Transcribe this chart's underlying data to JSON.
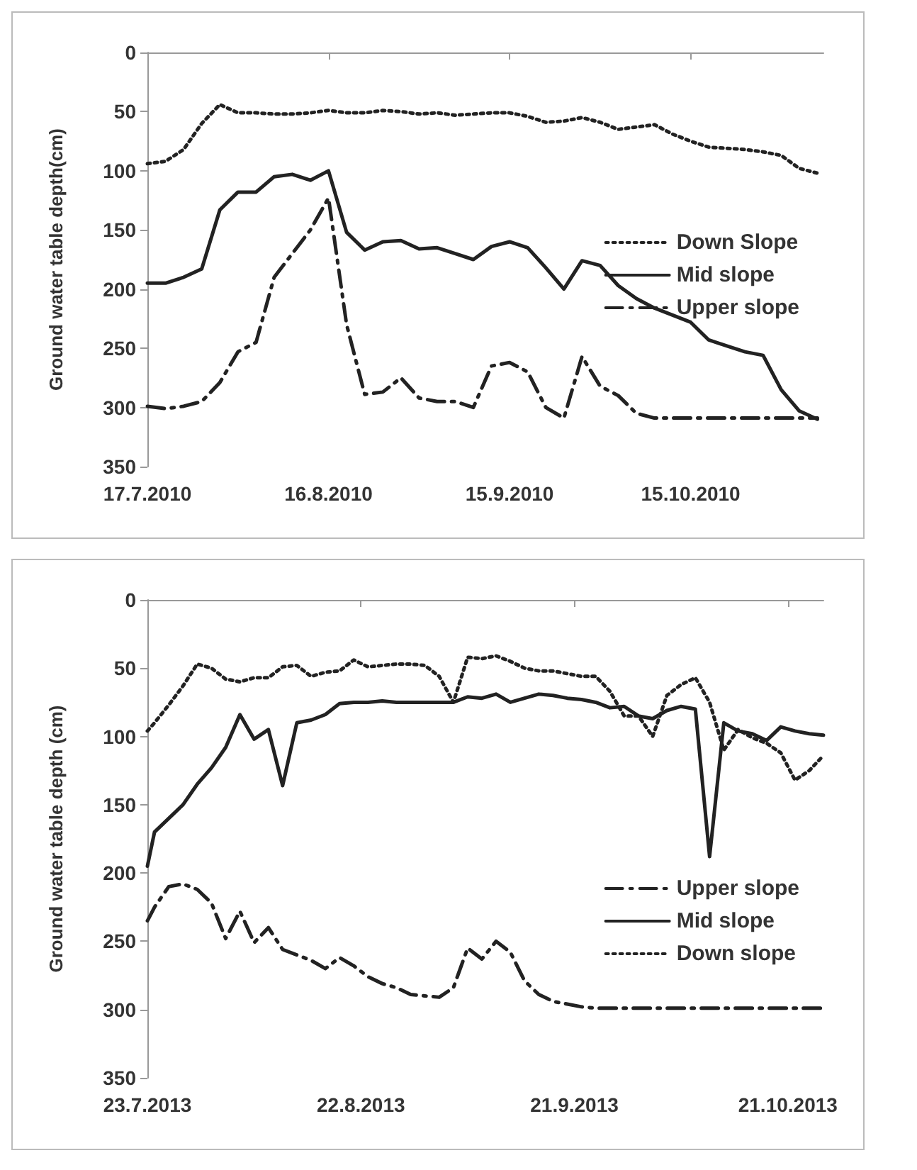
{
  "chart_data": [
    {
      "type": "line",
      "ylabel": "Ground water table depth(cm)",
      "x": [
        "2010-07-17",
        "2010-07-20",
        "2010-07-23",
        "2010-07-26",
        "2010-07-29",
        "2010-08-01",
        "2010-08-04",
        "2010-08-07",
        "2010-08-10",
        "2010-08-13",
        "2010-08-16",
        "2010-08-19",
        "2010-08-22",
        "2010-08-25",
        "2010-08-28",
        "2010-08-31",
        "2010-09-03",
        "2010-09-06",
        "2010-09-09",
        "2010-09-12",
        "2010-09-15",
        "2010-09-18",
        "2010-09-21",
        "2010-09-24",
        "2010-09-27",
        "2010-09-30",
        "2010-10-03",
        "2010-10-06",
        "2010-10-09",
        "2010-10-12",
        "2010-10-15",
        "2010-10-18",
        "2010-10-21",
        "2010-10-24",
        "2010-10-27",
        "2010-10-30",
        "2010-11-02",
        "2010-11-05"
      ],
      "series": [
        {
          "name": "Down Slope",
          "color": "#222222",
          "line_style": "dotted",
          "values": [
            94,
            92,
            82,
            60,
            44,
            51,
            51,
            52,
            52,
            51,
            49,
            51,
            51,
            49,
            50,
            52,
            51,
            53,
            52,
            51,
            51,
            54,
            59,
            58,
            55,
            59,
            65,
            63,
            61,
            69,
            75,
            80,
            81,
            82,
            84,
            87,
            98,
            102
          ]
        },
        {
          "name": "Mid slope",
          "color": "#222222",
          "line_style": "solid",
          "values": [
            195,
            195,
            190,
            183,
            133,
            118,
            118,
            105,
            103,
            108,
            100,
            152,
            167,
            160,
            159,
            166,
            165,
            170,
            175,
            164,
            160,
            165,
            182,
            200,
            176,
            180,
            197,
            208,
            216,
            222,
            228,
            243,
            248,
            253,
            256,
            285,
            303,
            310
          ]
        },
        {
          "name": "Upper slope",
          "color": "#222222",
          "line_style": "dashed",
          "values": [
            299,
            301,
            299,
            295,
            279,
            253,
            245,
            190,
            170,
            150,
            123,
            230,
            289,
            287,
            275,
            292,
            295,
            295,
            300,
            265,
            262,
            270,
            300,
            309,
            257,
            282,
            290,
            305,
            309,
            309,
            309,
            309,
            309,
            309,
            309,
            309,
            309,
            309
          ]
        }
      ],
      "xlim": [
        "2010-07-17",
        "2010-11-06"
      ],
      "xticks": [
        {
          "value": "2010-07-17",
          "label": "17.7.2010"
        },
        {
          "value": "2010-08-16",
          "label": "16.8.2010"
        },
        {
          "value": "2010-09-15",
          "label": "15.9.2010"
        },
        {
          "value": "2010-10-15",
          "label": "15.10.2010"
        }
      ],
      "ylim": [
        350,
        0
      ],
      "yticks": [
        0,
        50,
        100,
        150,
        200,
        250,
        300,
        350
      ],
      "grid": false,
      "legend": "right",
      "marker": "none"
    },
    {
      "type": "line",
      "ylabel": "Ground water table depth (cm)",
      "x": [
        "2013-07-23",
        "2013-07-24",
        "2013-07-26",
        "2013-07-28",
        "2013-07-30",
        "2013-08-01",
        "2013-08-03",
        "2013-08-05",
        "2013-08-07",
        "2013-08-09",
        "2013-08-11",
        "2013-08-13",
        "2013-08-15",
        "2013-08-17",
        "2013-08-19",
        "2013-08-21",
        "2013-08-23",
        "2013-08-25",
        "2013-08-27",
        "2013-08-29",
        "2013-08-31",
        "2013-09-02",
        "2013-09-04",
        "2013-09-06",
        "2013-09-08",
        "2013-09-10",
        "2013-09-12",
        "2013-09-14",
        "2013-09-16",
        "2013-09-18",
        "2013-09-20",
        "2013-09-22",
        "2013-09-24",
        "2013-09-26",
        "2013-09-28",
        "2013-09-30",
        "2013-10-02",
        "2013-10-04",
        "2013-10-06",
        "2013-10-08",
        "2013-10-10",
        "2013-10-12",
        "2013-10-14",
        "2013-10-16",
        "2013-10-18",
        "2013-10-20",
        "2013-10-22",
        "2013-10-24",
        "2013-10-26"
      ],
      "series": [
        {
          "name": "Upper slope",
          "color": "#222222",
          "line_style": "dashed",
          "values": [
            235,
            225,
            210,
            208,
            212,
            222,
            248,
            228,
            251,
            240,
            256,
            260,
            264,
            270,
            262,
            268,
            276,
            281,
            284,
            289,
            290,
            291,
            284,
            255,
            263,
            250,
            258,
            279,
            289,
            294,
            296,
            298,
            299,
            299,
            299,
            299,
            299,
            299,
            299,
            299,
            299,
            299,
            299,
            299,
            299,
            299,
            299,
            299,
            299
          ]
        },
        {
          "name": "Mid slope",
          "color": "#222222",
          "line_style": "solid",
          "values": [
            195,
            170,
            160,
            150,
            135,
            123,
            108,
            84,
            102,
            95,
            136,
            90,
            88,
            84,
            76,
            75,
            75,
            74,
            75,
            75,
            75,
            75,
            75,
            71,
            72,
            69,
            75,
            72,
            69,
            70,
            72,
            73,
            75,
            79,
            78,
            85,
            87,
            81,
            78,
            80,
            188,
            90,
            96,
            98,
            103,
            93,
            96,
            98,
            99
          ]
        },
        {
          "name": "Down slope",
          "color": "#222222",
          "line_style": "dotted",
          "values": [
            96,
            90,
            77,
            63,
            47,
            50,
            58,
            60,
            57,
            57,
            49,
            48,
            56,
            53,
            52,
            44,
            49,
            48,
            47,
            47,
            48,
            56,
            75,
            42,
            43,
            41,
            45,
            50,
            52,
            52,
            54,
            56,
            56,
            67,
            85,
            85,
            100,
            70,
            62,
            57,
            75,
            110,
            95,
            101,
            105,
            112,
            132,
            125,
            114
          ]
        }
      ],
      "xlim": [
        "2013-07-23",
        "2013-10-26"
      ],
      "xticks": [
        {
          "value": "2013-07-23",
          "label": "23.7.2013"
        },
        {
          "value": "2013-08-22",
          "label": "22.8.2013"
        },
        {
          "value": "2013-09-21",
          "label": "21.9.2013"
        },
        {
          "value": "2013-10-21",
          "label": "21.10.2013"
        }
      ],
      "ylim": [
        350,
        0
      ],
      "yticks": [
        0,
        50,
        100,
        150,
        200,
        250,
        300,
        350
      ],
      "grid": false,
      "legend": "bottom right",
      "marker": "none"
    }
  ]
}
